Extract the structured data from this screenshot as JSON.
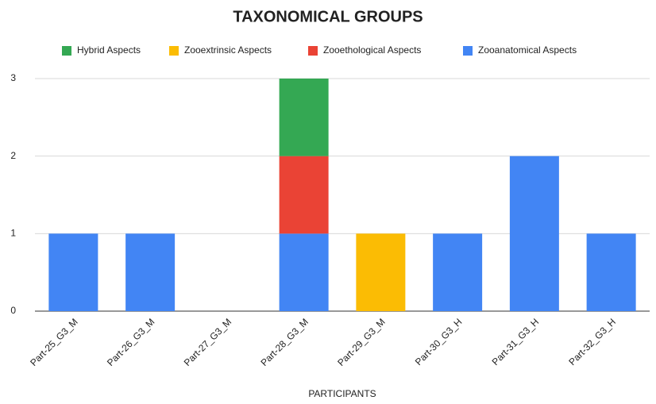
{
  "chart_data": {
    "type": "stacked_bar",
    "title": "TAXONOMICAL GROUPS",
    "x_label": "PARTICIPANTS",
    "categories": [
      "Part-25_G3_M",
      "Part-26_G3_M",
      "Part-27_G3_M",
      "Part-28_G3_M",
      "Part-29_G3_M",
      "Part-30_G3_H",
      "Part-31_G3_H",
      "Part-32_G3_H"
    ],
    "series": [
      {
        "name": "Hybrid Aspects",
        "color": "#34a853",
        "values": [
          0,
          0,
          0,
          1,
          0,
          0,
          0,
          0
        ]
      },
      {
        "name": "Zooextrinsic Aspects",
        "color": "#fbbc04",
        "values": [
          0,
          0,
          0,
          0,
          1,
          0,
          0,
          0
        ]
      },
      {
        "name": "Zooethological Aspects",
        "color": "#ea4335",
        "values": [
          0,
          0,
          0,
          1,
          0,
          0,
          0,
          0
        ]
      },
      {
        "name": "Zooanatomical Aspects",
        "color": "#4285f4",
        "values": [
          1,
          1,
          0,
          1,
          0,
          1,
          2,
          1
        ]
      }
    ],
    "ylim": [
      0,
      3
    ],
    "yticks": [
      0,
      1,
      2,
      3
    ],
    "grid": true,
    "legend": "top"
  }
}
